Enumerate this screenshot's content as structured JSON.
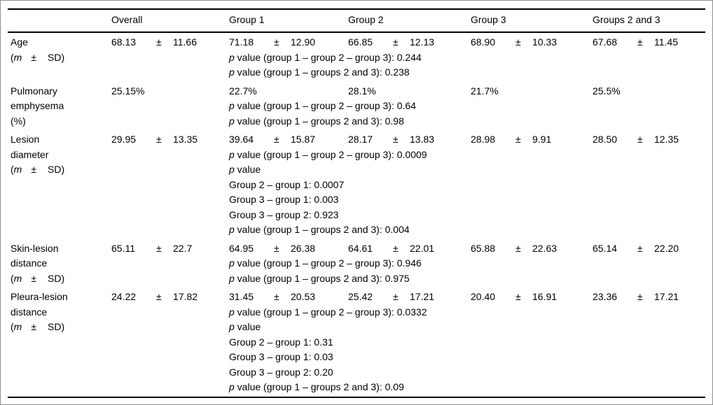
{
  "symbols": {
    "plus_minus": "±",
    "open_paren": "(",
    "m_label": "m",
    "sd_close": "SD)",
    "pct_unit": "(%)"
  },
  "table": {
    "header": {
      "overall": "Overall",
      "group1": "Group 1",
      "group2": "Group 2",
      "group3": "Group 3",
      "groups23": "Groups 2 and 3"
    },
    "rows": [
      {
        "label": "Age",
        "overall": {
          "m": "68.13",
          "sd": "11.66"
        },
        "group1": {
          "m": "71.18",
          "sd": "12.90"
        },
        "group2": {
          "m": "66.85",
          "sd": "12.13"
        },
        "group3": {
          "m": "68.90",
          "sd": "10.33"
        },
        "groups23": {
          "m": "67.68",
          "sd": "11.45"
        },
        "plines": [
          {
            "p": "p",
            "text": " value (group 1 – group 2 – group 3): 0.244"
          },
          {
            "p": "p",
            "text": " value (group 1 – groups 2 and 3): 0.238"
          }
        ]
      },
      {
        "label": "Pulmonary emphysema",
        "overall": "25.15%",
        "group1": "22.7%",
        "group2": "28.1%",
        "group3": "21.7%",
        "groups23": "25.5%",
        "plines": [
          {
            "p": "p",
            "text": " value (group 1 – group 2 – group 3): 0.64"
          },
          {
            "p": "p",
            "text": " value (group 1 – groups 2 and 3): 0.98"
          }
        ]
      },
      {
        "label": "Lesion diameter",
        "overall": {
          "m": "29.95",
          "sd": "13.35"
        },
        "group1": {
          "m": "39.64",
          "sd": "15.87"
        },
        "group2": {
          "m": "28.17",
          "sd": "13.83"
        },
        "group3": {
          "m": "28.98",
          "sd": "9.91"
        },
        "groups23": {
          "m": "28.50",
          "sd": "12.35"
        },
        "plines": [
          {
            "p": "p",
            "text": " value (group 1 – group 2 – group 3): 0.0009"
          },
          {
            "p": "p",
            "text": " value"
          },
          {
            "p": "",
            "text": "Group 2 – group 1: 0.0007"
          },
          {
            "p": "",
            "text": "Group 3 – group 1: 0.003"
          },
          {
            "p": "",
            "text": "Group 3 – group 2: 0.923"
          },
          {
            "p": "p",
            "text": " value (group 1 – groups 2 and 3): 0.004"
          }
        ]
      },
      {
        "label": "Skin-lesion distance",
        "overall": {
          "m": "65.11",
          "sd": "22.7"
        },
        "group1": {
          "m": "64.95",
          "sd": "26.38"
        },
        "group2": {
          "m": "64.61",
          "sd": "22.01"
        },
        "group3": {
          "m": "65.88",
          "sd": "22.63"
        },
        "groups23": {
          "m": "65.14",
          "sd": "22.20"
        },
        "plines": [
          {
            "p": "p",
            "text": " value (group 1 – group 2 – group 3): 0.946"
          },
          {
            "p": "p",
            "text": " value (group 1 – groups 2 and 3): 0.975"
          }
        ]
      },
      {
        "label": "Pleura-lesion distance",
        "overall": {
          "m": "24.22",
          "sd": "17.82"
        },
        "group1": {
          "m": "31.45",
          "sd": "20.53"
        },
        "group2": {
          "m": "25.42",
          "sd": "17.21"
        },
        "group3": {
          "m": "20.40",
          "sd": "16.91"
        },
        "groups23": {
          "m": "23.36",
          "sd": "17.21"
        },
        "plines": [
          {
            "p": "p",
            "text": " value (group 1 – group 2 – group 3): 0.0332"
          },
          {
            "p": "p",
            "text": " value"
          },
          {
            "p": "",
            "text": "Group 2 – group 1: 0.31"
          },
          {
            "p": "",
            "text": "Group 3 – group 1: 0.03"
          },
          {
            "p": "",
            "text": "Group 3 – group 2: 0.20"
          },
          {
            "p": "p",
            "text": " value (group 1 – groups 2 and 3): 0.09"
          }
        ]
      }
    ]
  }
}
